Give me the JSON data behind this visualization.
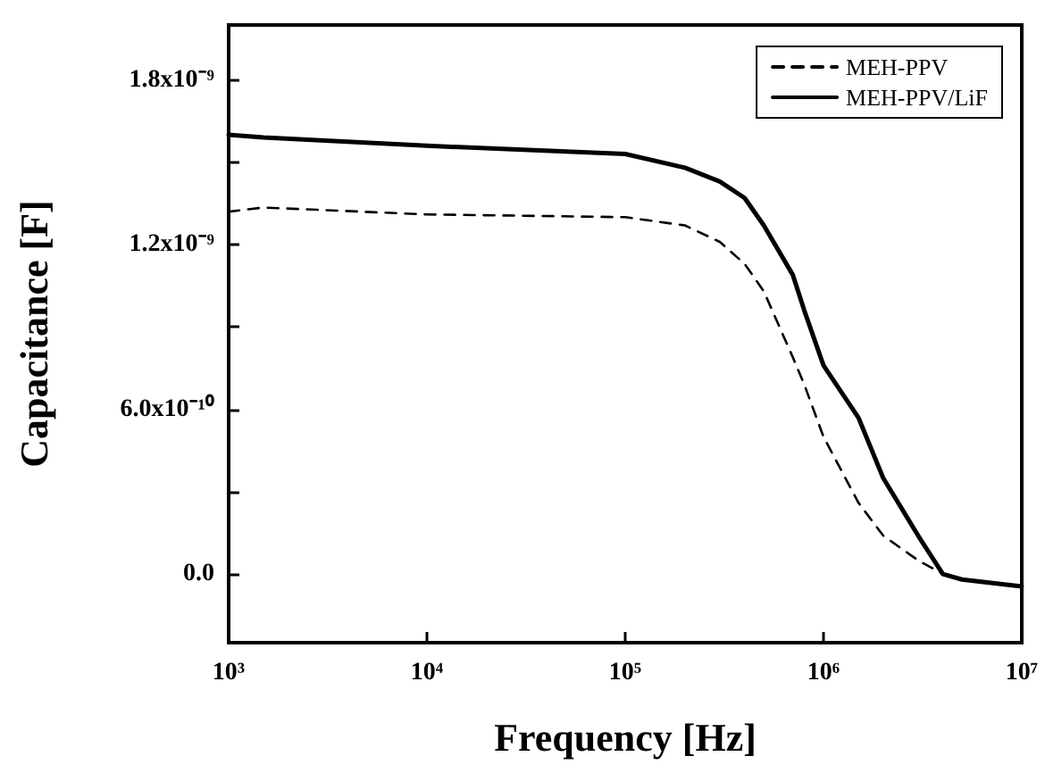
{
  "chart_data": {
    "type": "line",
    "xlabel": "Frequency [Hz]",
    "ylabel": "Capacitance [F]",
    "log": "x",
    "xlim": [
      1000,
      10000000
    ],
    "xticks": [
      {
        "value": 1000,
        "label": "10³"
      },
      {
        "value": 10000,
        "label": "10⁴"
      },
      {
        "value": 100000,
        "label": "10⁵"
      },
      {
        "value": 1000000,
        "label": "10⁶"
      },
      {
        "value": 10000000,
        "label": "10⁷"
      }
    ],
    "ylim": [
      -2.5e-10,
      2e-09
    ],
    "yticks": [
      {
        "value": 0,
        "label": "0.0"
      },
      {
        "value": 3e-10,
        "label": null
      },
      {
        "value": 6e-10,
        "label": "6.0x10⁻¹⁰"
      },
      {
        "value": 9e-10,
        "label": null
      },
      {
        "value": 1.2e-09,
        "label": "1.2x10⁻⁹"
      },
      {
        "value": 1.5e-09,
        "label": null
      },
      {
        "value": 1.8e-09,
        "label": "1.8x10⁻⁹"
      }
    ],
    "x": [
      1000,
      1500,
      10000,
      100000,
      200000,
      300000,
      400000,
      500000,
      700000,
      800000,
      1000000,
      1500000,
      2000000,
      3000000,
      4000000,
      5000000,
      10000000
    ],
    "grid": false,
    "legend": "top right",
    "marker": "none",
    "series": [
      {
        "name": "MEH-PPV",
        "color": "#000000",
        "line_style": "dashed",
        "values": [
          1.32e-09,
          1.335e-09,
          1.31e-09,
          1.3e-09,
          1.27e-09,
          1.21e-09,
          1.13e-09,
          1.03e-09,
          7.9e-10,
          6.9e-10,
          5e-10,
          2.6e-10,
          1.4e-10,
          5e-11,
          0,
          -2e-11,
          -4.5e-11
        ]
      },
      {
        "name": "MEH-PPV/LiF",
        "color": "#000000",
        "line_style": "solid",
        "values": [
          1.6e-09,
          1.59e-09,
          1.56e-09,
          1.53e-09,
          1.48e-09,
          1.43e-09,
          1.37e-09,
          1.27e-09,
          1.09e-09,
          9.6e-10,
          7.6e-10,
          5.7e-10,
          3.5e-10,
          1.4e-10,
          0,
          -2e-11,
          -4.5e-11
        ]
      }
    ]
  }
}
